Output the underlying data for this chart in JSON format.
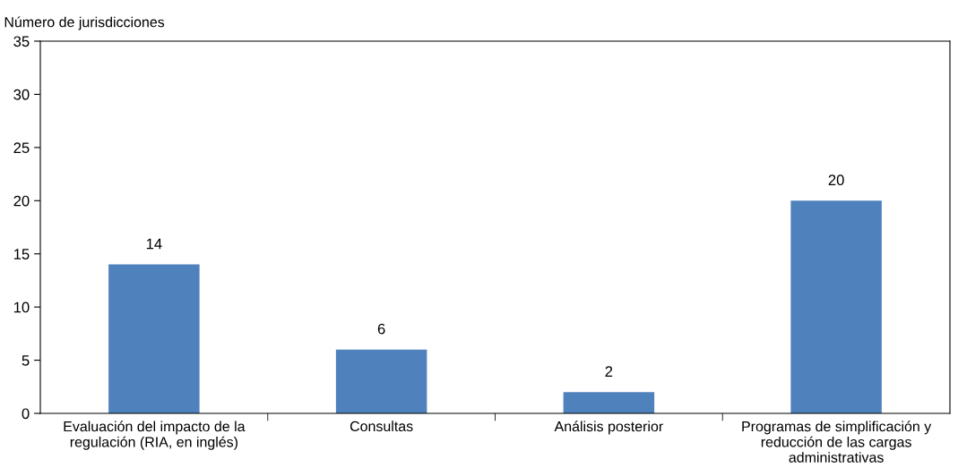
{
  "chart_data": {
    "type": "bar",
    "ylabel": "Número de jurisdicciones",
    "categories": [
      "Evaluación del impacto de la\nregulación (RIA, en inglés)",
      "Consultas",
      "Análisis posterior",
      "Programas de simplificación y\nreducción de las cargas\nadministrativas"
    ],
    "values": [
      14,
      6,
      2,
      20
    ],
    "color": "#4f81bd",
    "ylim": [
      0,
      35
    ],
    "yticks": [
      0,
      5,
      10,
      15,
      20,
      25,
      30,
      35
    ],
    "grid": false,
    "data_labels": true
  }
}
